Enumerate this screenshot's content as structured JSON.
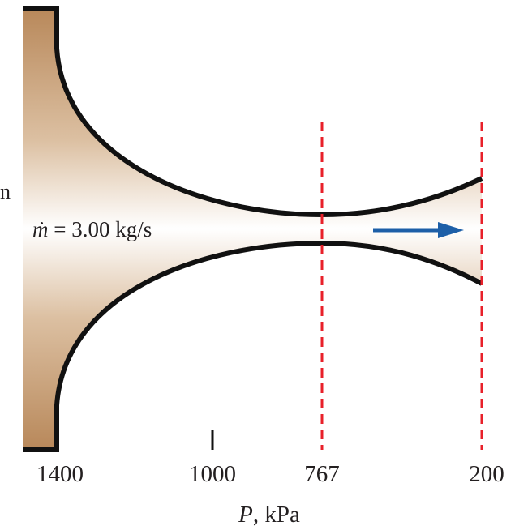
{
  "fragment": "n",
  "mass_flow": {
    "symbol": "ṁ",
    "text": "= 3.00 kg/s"
  },
  "axis": {
    "symbol": "P",
    "unit": ", kPa",
    "ticks": [
      1400,
      1000,
      767,
      200
    ]
  }
}
